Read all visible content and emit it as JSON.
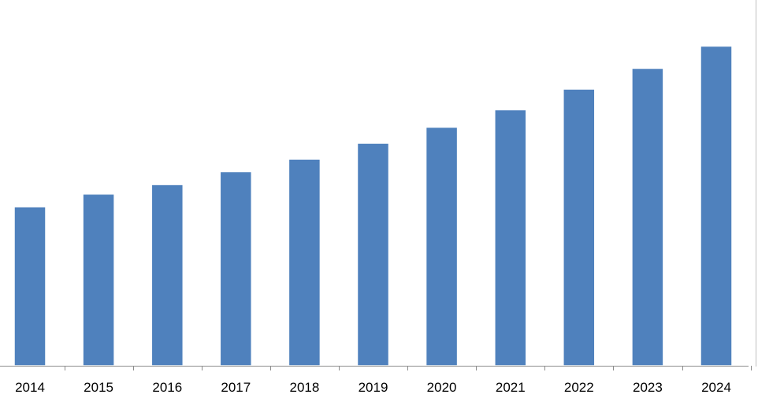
{
  "chart_data": {
    "type": "bar",
    "categories": [
      "2014",
      "2015",
      "2016",
      "2017",
      "2018",
      "2019",
      "2020",
      "2021",
      "2022",
      "2023",
      "2024"
    ],
    "values": [
      50,
      54,
      57,
      61,
      65,
      70,
      75,
      80.5,
      87,
      93.5,
      100.5
    ],
    "title": "",
    "xlabel": "",
    "ylabel": "",
    "ylim": [
      0,
      115
    ],
    "grid": false,
    "legend": "none",
    "colors": {
      "bar": "#4f81bd",
      "bar_edge": "#ffffff",
      "axis": "#8c8c8c"
    }
  }
}
